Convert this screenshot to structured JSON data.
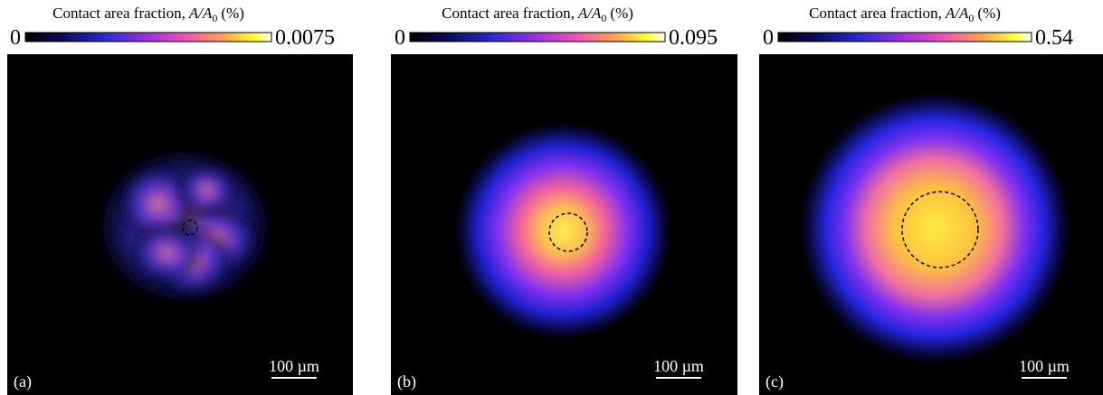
{
  "colorbar_label": {
    "text": "Contact area fraction,",
    "symbol": "A/A",
    "subscript": "0",
    "unit": "(%)"
  },
  "panels": [
    {
      "label": "(a)",
      "min": 0,
      "max": 0.0075,
      "scale_bar": "100 µm"
    },
    {
      "label": "(b)",
      "min": 0,
      "max": 0.095,
      "scale_bar": "100 µm"
    },
    {
      "label": "(c)",
      "min": 0,
      "max": 0.54,
      "scale_bar": "100 µm"
    }
  ]
}
